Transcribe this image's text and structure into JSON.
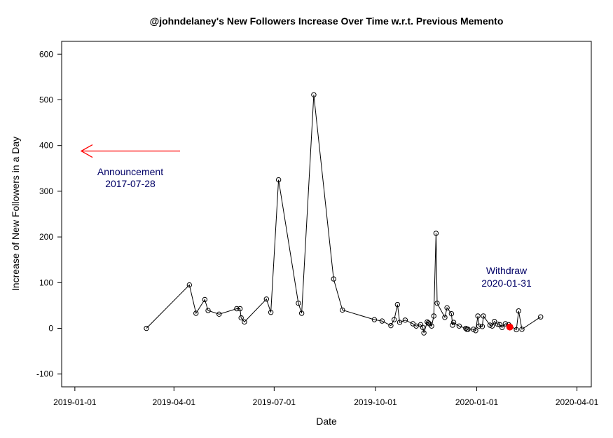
{
  "chart_data": {
    "type": "line",
    "title": "@johndelaney's New Followers Increase Over Time w.r.t. Previous Memento",
    "xlabel": "Date",
    "ylabel": "Increase of New Followers in a Day",
    "xlim": [
      "2018-12-20",
      "2020-04-14"
    ],
    "ylim": [
      -128,
      628
    ],
    "x_ticks": [
      "2019-01-01",
      "2019-04-01",
      "2019-07-01",
      "2019-10-01",
      "2020-01-01",
      "2020-04-01"
    ],
    "y_ticks": [
      -100,
      0,
      100,
      200,
      300,
      400,
      500,
      600
    ],
    "grid": false,
    "series": [
      {
        "marker": "open-circle",
        "color": "#000000",
        "points": [
          {
            "x": "2019-03-07",
            "y": 0
          },
          {
            "x": "2019-04-15",
            "y": 95
          },
          {
            "x": "2019-04-21",
            "y": 33
          },
          {
            "x": "2019-04-29",
            "y": 63
          },
          {
            "x": "2019-05-02",
            "y": 39
          },
          {
            "x": "2019-05-12",
            "y": 31
          },
          {
            "x": "2019-05-28",
            "y": 43
          },
          {
            "x": "2019-05-31",
            "y": 43
          },
          {
            "x": "2019-06-01",
            "y": 23
          },
          {
            "x": "2019-06-04",
            "y": 14
          },
          {
            "x": "2019-06-24",
            "y": 64
          },
          {
            "x": "2019-06-28",
            "y": 35
          },
          {
            "x": "2019-07-05",
            "y": 325
          },
          {
            "x": "2019-07-23",
            "y": 55
          },
          {
            "x": "2019-07-26",
            "y": 33
          },
          {
            "x": "2019-08-06",
            "y": 511
          },
          {
            "x": "2019-08-24",
            "y": 108
          },
          {
            "x": "2019-09-01",
            "y": 40
          },
          {
            "x": "2019-09-30",
            "y": 19
          },
          {
            "x": "2019-10-07",
            "y": 16
          },
          {
            "x": "2019-10-15",
            "y": 6
          },
          {
            "x": "2019-10-18",
            "y": 19
          },
          {
            "x": "2019-10-21",
            "y": 52
          },
          {
            "x": "2019-10-23",
            "y": 13
          },
          {
            "x": "2019-10-28",
            "y": 18
          },
          {
            "x": "2019-11-04",
            "y": 10
          },
          {
            "x": "2019-11-07",
            "y": 5
          },
          {
            "x": "2019-11-11",
            "y": 8
          },
          {
            "x": "2019-11-13",
            "y": 2
          },
          {
            "x": "2019-11-14",
            "y": -10
          },
          {
            "x": "2019-11-17",
            "y": 14
          },
          {
            "x": "2019-11-18",
            "y": 12
          },
          {
            "x": "2019-11-19",
            "y": 10
          },
          {
            "x": "2019-11-21",
            "y": 5
          },
          {
            "x": "2019-11-23",
            "y": 27
          },
          {
            "x": "2019-11-25",
            "y": 208
          },
          {
            "x": "2019-11-26",
            "y": 55
          },
          {
            "x": "2019-12-03",
            "y": 24
          },
          {
            "x": "2019-12-05",
            "y": 45
          },
          {
            "x": "2019-12-09",
            "y": 32
          },
          {
            "x": "2019-12-10",
            "y": 7
          },
          {
            "x": "2019-12-11",
            "y": 13
          },
          {
            "x": "2019-12-16",
            "y": 5
          },
          {
            "x": "2019-12-22",
            "y": 0
          },
          {
            "x": "2019-12-23",
            "y": -2
          },
          {
            "x": "2019-12-24",
            "y": -2
          },
          {
            "x": "2019-12-29",
            "y": -2
          },
          {
            "x": "2019-12-31",
            "y": -5
          },
          {
            "x": "2020-01-02",
            "y": 27
          },
          {
            "x": "2020-01-03",
            "y": 5
          },
          {
            "x": "2020-01-06",
            "y": 4
          },
          {
            "x": "2020-01-07",
            "y": 27
          },
          {
            "x": "2020-01-13",
            "y": 7
          },
          {
            "x": "2020-01-15",
            "y": 5
          },
          {
            "x": "2020-01-17",
            "y": 15
          },
          {
            "x": "2020-01-20",
            "y": 9
          },
          {
            "x": "2020-01-22",
            "y": 8
          },
          {
            "x": "2020-01-24",
            "y": 2
          },
          {
            "x": "2020-01-27",
            "y": 10
          },
          {
            "x": "2020-01-30",
            "y": 8
          },
          {
            "x": "2020-02-06",
            "y": -3
          },
          {
            "x": "2020-02-08",
            "y": 38
          },
          {
            "x": "2020-02-11",
            "y": -2
          },
          {
            "x": "2020-02-28",
            "y": 25
          }
        ]
      }
    ],
    "highlight_point": {
      "x": "2020-01-31",
      "y": 3,
      "color": "#ff0000"
    },
    "arrow": {
      "direction": "left",
      "y": 388,
      "color": "#ff0000"
    },
    "annotations": [
      {
        "id": "announcement",
        "line1": "Announcement",
        "line2": "2017-07-28",
        "color": "#000066"
      },
      {
        "id": "withdraw",
        "line1": "Withdraw",
        "line2": "2020-01-31",
        "color": "#000066"
      }
    ]
  }
}
